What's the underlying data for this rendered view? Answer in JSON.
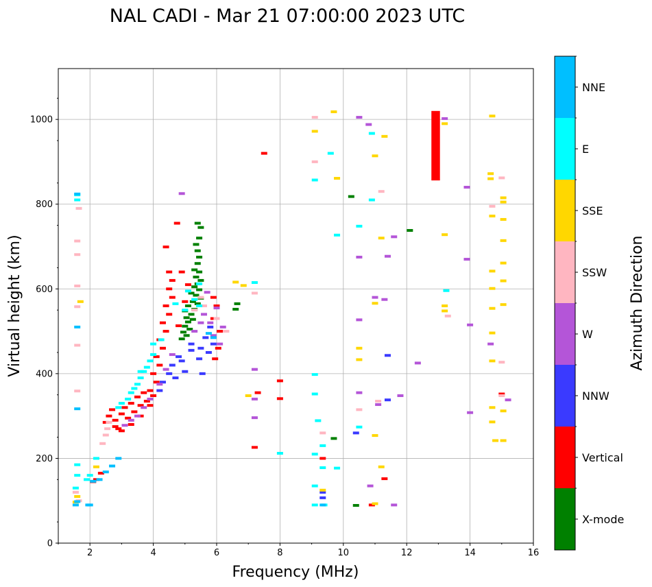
{
  "chart_data": {
    "type": "scatter",
    "title": "NAL CADI - Mar 21 07:00:00 2023 UTC",
    "xlabel": "Frequency (MHz)",
    "ylabel": "Virtual height (km)",
    "xlim": [
      1,
      16
    ],
    "ylim": [
      0,
      1120
    ],
    "xticks": [
      2,
      4,
      6,
      8,
      10,
      12,
      14,
      16
    ],
    "yticks": [
      0,
      200,
      400,
      600,
      800,
      1000
    ],
    "grid": true,
    "colorbar": {
      "title": "Azimuth Direction",
      "categories": [
        {
          "name": "X-mode",
          "color": "#008000"
        },
        {
          "name": "Vertical",
          "color": "#ff0000"
        },
        {
          "name": "NNW",
          "color": "#3a3aff"
        },
        {
          "name": "W",
          "color": "#b455d8"
        },
        {
          "name": "SSW",
          "color": "#ffb6c1"
        },
        {
          "name": "SSE",
          "color": "#ffd700"
        },
        {
          "name": "E",
          "color": "#00ffff"
        },
        {
          "name": "NNE",
          "color": "#00bfff"
        }
      ]
    },
    "series": [
      {
        "name": "X-mode",
        "points": [
          [
            5.4,
            755
          ],
          [
            5.5,
            745
          ],
          [
            5.45,
            720
          ],
          [
            5.35,
            705
          ],
          [
            5.4,
            690
          ],
          [
            5.45,
            675
          ],
          [
            5.4,
            660
          ],
          [
            5.3,
            645
          ],
          [
            5.45,
            640
          ],
          [
            5.35,
            628
          ],
          [
            5.5,
            620
          ],
          [
            5.4,
            612
          ],
          [
            5.3,
            605
          ],
          [
            5.45,
            598
          ],
          [
            5.2,
            590
          ],
          [
            5.35,
            585
          ],
          [
            5.5,
            578
          ],
          [
            5.25,
            570
          ],
          [
            5.4,
            565
          ],
          [
            5.1,
            560
          ],
          [
            5.3,
            552
          ],
          [
            5.0,
            548
          ],
          [
            5.2,
            540
          ],
          [
            5.05,
            532
          ],
          [
            5.25,
            528
          ],
          [
            5.1,
            522
          ],
          [
            5.0,
            512
          ],
          [
            5.15,
            505
          ],
          [
            4.95,
            498
          ],
          [
            5.05,
            490
          ],
          [
            4.9,
            482
          ],
          [
            6.65,
            565
          ],
          [
            6.6,
            552
          ],
          [
            10.25,
            818
          ],
          [
            12.1,
            738
          ],
          [
            9.7,
            247
          ],
          [
            10.4,
            89
          ]
        ]
      },
      {
        "name": "Vertical",
        "points": [
          [
            2.5,
            285
          ],
          [
            2.6,
            300
          ],
          [
            2.7,
            315
          ],
          [
            2.8,
            290
          ],
          [
            2.9,
            270
          ],
          [
            3.0,
            305
          ],
          [
            3.1,
            320
          ],
          [
            3.2,
            295
          ],
          [
            3.3,
            330
          ],
          [
            3.4,
            310
          ],
          [
            3.5,
            345
          ],
          [
            3.6,
            325
          ],
          [
            3.7,
            355
          ],
          [
            3.8,
            335
          ],
          [
            3.9,
            360
          ],
          [
            4.0,
            348
          ],
          [
            4.1,
            380
          ],
          [
            4.0,
            400
          ],
          [
            4.2,
            420
          ],
          [
            4.1,
            440
          ],
          [
            4.3,
            460
          ],
          [
            4.2,
            480
          ],
          [
            4.4,
            500
          ],
          [
            4.3,
            520
          ],
          [
            4.5,
            540
          ],
          [
            4.4,
            560
          ],
          [
            4.6,
            580
          ],
          [
            4.5,
            600
          ],
          [
            4.6,
            620
          ],
          [
            4.5,
            640
          ],
          [
            4.4,
            699
          ],
          [
            4.75,
            755
          ],
          [
            4.9,
            640
          ],
          [
            5.1,
            610
          ],
          [
            5.0,
            570
          ],
          [
            4.8,
            513
          ],
          [
            5.9,
            580
          ],
          [
            6.0,
            560
          ],
          [
            5.9,
            530
          ],
          [
            6.1,
            500
          ],
          [
            6.05,
            460
          ],
          [
            5.95,
            435
          ],
          [
            7.3,
            355
          ],
          [
            7.5,
            920
          ],
          [
            8.0,
            383
          ],
          [
            8.0,
            341
          ],
          [
            9.35,
            200
          ],
          [
            10.9,
            90
          ],
          [
            11.3,
            152
          ],
          [
            12.9,
            940
          ],
          [
            15.0,
            352
          ],
          [
            2.2,
            150
          ],
          [
            2.1,
            145
          ],
          [
            2.35,
            165
          ],
          [
            7.2,
            226
          ],
          [
            3.0,
            265
          ],
          [
            3.3,
            280
          ],
          [
            3.6,
            300
          ],
          [
            3.9,
            325
          ],
          [
            2.8,
            275
          ]
        ]
      },
      {
        "name": "NNW",
        "points": [
          [
            4.8,
            440
          ],
          [
            4.6,
            420
          ],
          [
            4.5,
            400
          ],
          [
            4.3,
            380
          ],
          [
            4.9,
            430
          ],
          [
            5.2,
            470
          ],
          [
            5.5,
            460
          ],
          [
            5.65,
            485
          ],
          [
            5.8,
            510
          ],
          [
            5.9,
            470
          ],
          [
            5.2,
            455
          ],
          [
            4.7,
            390
          ],
          [
            5.0,
            405
          ],
          [
            5.45,
            435
          ],
          [
            4.2,
            360
          ],
          [
            10.4,
            260
          ],
          [
            11.4,
            443
          ],
          [
            9.35,
            120
          ],
          [
            9.35,
            107
          ],
          [
            11.4,
            338
          ],
          [
            5.55,
            400
          ],
          [
            5.75,
            450
          ]
        ]
      },
      {
        "name": "W",
        "points": [
          [
            4.9,
            825
          ],
          [
            5.7,
            592
          ],
          [
            6.0,
            555
          ],
          [
            6.2,
            510
          ],
          [
            5.6,
            540
          ],
          [
            5.8,
            520
          ],
          [
            5.3,
            500
          ],
          [
            5.5,
            520
          ],
          [
            5.9,
            490
          ],
          [
            6.1,
            470
          ],
          [
            4.6,
            445
          ],
          [
            4.4,
            410
          ],
          [
            4.2,
            375
          ],
          [
            3.9,
            340
          ],
          [
            3.7,
            320
          ],
          [
            3.5,
            300
          ],
          [
            3.3,
            290
          ],
          [
            3.1,
            278
          ],
          [
            7.2,
            340
          ],
          [
            7.2,
            410
          ],
          [
            10.5,
            355
          ],
          [
            10.5,
            527
          ],
          [
            10.5,
            675
          ],
          [
            10.5,
            1005
          ],
          [
            10.8,
            988
          ],
          [
            11.0,
            580
          ],
          [
            11.3,
            575
          ],
          [
            11.4,
            677
          ],
          [
            11.6,
            723
          ],
          [
            11.8,
            348
          ],
          [
            12.35,
            425
          ],
          [
            12.9,
            1001
          ],
          [
            13.2,
            1002
          ],
          [
            13.9,
            840
          ],
          [
            13.9,
            670
          ],
          [
            14.0,
            308
          ],
          [
            14.0,
            515
          ],
          [
            14.65,
            470
          ],
          [
            15.2,
            338
          ],
          [
            11.1,
            327
          ],
          [
            10.85,
            135
          ],
          [
            11.6,
            90
          ],
          [
            7.2,
            296
          ]
        ]
      },
      {
        "name": "SSW",
        "points": [
          [
            2.4,
            235
          ],
          [
            2.5,
            255
          ],
          [
            2.55,
            270
          ],
          [
            2.6,
            285
          ],
          [
            1.65,
            790
          ],
          [
            1.6,
            713
          ],
          [
            1.6,
            681
          ],
          [
            1.6,
            607
          ],
          [
            1.6,
            558
          ],
          [
            1.6,
            467
          ],
          [
            1.6,
            359
          ],
          [
            5.5,
            580
          ],
          [
            5.6,
            560
          ],
          [
            5.3,
            550
          ],
          [
            6.0,
            530
          ],
          [
            6.3,
            500
          ],
          [
            7.2,
            590
          ],
          [
            9.1,
            900
          ],
          [
            9.1,
            1005
          ],
          [
            9.35,
            260
          ],
          [
            10.5,
            315
          ],
          [
            11.2,
            830
          ],
          [
            11.1,
            335
          ],
          [
            13.3,
            536
          ],
          [
            14.7,
            795
          ],
          [
            15.0,
            427
          ],
          [
            15.0,
            862
          ],
          [
            15.0,
            348
          ],
          [
            1.55,
            120
          ],
          [
            1.65,
            100
          ]
        ]
      },
      {
        "name": "SSE",
        "points": [
          [
            1.7,
            570
          ],
          [
            6.6,
            616
          ],
          [
            6.85,
            608
          ],
          [
            7.0,
            348
          ],
          [
            9.1,
            972
          ],
          [
            9.35,
            125
          ],
          [
            9.7,
            1018
          ],
          [
            9.8,
            861
          ],
          [
            10.5,
            460
          ],
          [
            10.5,
            433
          ],
          [
            11.0,
            566
          ],
          [
            11.0,
            254
          ],
          [
            11.0,
            914
          ],
          [
            11.2,
            720
          ],
          [
            11.3,
            960
          ],
          [
            11.2,
            180
          ],
          [
            11.0,
            93
          ],
          [
            13.2,
            728
          ],
          [
            13.2,
            560
          ],
          [
            13.2,
            548
          ],
          [
            13.2,
            990
          ],
          [
            14.7,
            1008
          ],
          [
            14.65,
            872
          ],
          [
            14.65,
            860
          ],
          [
            14.7,
            772
          ],
          [
            14.7,
            642
          ],
          [
            14.7,
            601
          ],
          [
            14.7,
            554
          ],
          [
            14.7,
            496
          ],
          [
            14.7,
            430
          ],
          [
            14.7,
            320
          ],
          [
            14.7,
            286
          ],
          [
            14.8,
            242
          ],
          [
            15.05,
            815
          ],
          [
            15.05,
            805
          ],
          [
            15.05,
            764
          ],
          [
            15.05,
            714
          ],
          [
            15.05,
            661
          ],
          [
            15.05,
            619
          ],
          [
            15.05,
            563
          ],
          [
            15.05,
            312
          ],
          [
            15.05,
            242
          ],
          [
            1.55,
            97
          ],
          [
            1.6,
            110
          ],
          [
            2.2,
            180
          ]
        ]
      },
      {
        "name": "E",
        "points": [
          [
            3.9,
            430
          ],
          [
            3.7,
            405
          ],
          [
            3.5,
            375
          ],
          [
            3.3,
            355
          ],
          [
            3.2,
            340
          ],
          [
            3.0,
            330
          ],
          [
            2.9,
            320
          ],
          [
            4.0,
            445
          ],
          [
            3.8,
            415
          ],
          [
            3.6,
            390
          ],
          [
            3.4,
            365
          ],
          [
            4.25,
            480
          ],
          [
            4.7,
            565
          ],
          [
            5.0,
            550
          ],
          [
            5.3,
            575
          ],
          [
            5.45,
            560
          ],
          [
            7.2,
            615
          ],
          [
            1.6,
            822
          ],
          [
            1.6,
            810
          ],
          [
            8.0,
            212
          ],
          [
            9.1,
            398
          ],
          [
            9.1,
            352
          ],
          [
            9.2,
            289
          ],
          [
            9.1,
            210
          ],
          [
            9.1,
            135
          ],
          [
            9.1,
            90
          ],
          [
            9.1,
            857
          ],
          [
            9.35,
            230
          ],
          [
            9.35,
            178
          ],
          [
            9.4,
            90
          ],
          [
            9.6,
            920
          ],
          [
            9.8,
            727
          ],
          [
            9.8,
            177
          ],
          [
            10.5,
            748
          ],
          [
            10.5,
            274
          ],
          [
            10.9,
            967
          ],
          [
            10.9,
            810
          ],
          [
            13.25,
            596
          ],
          [
            2.0,
            160
          ],
          [
            1.9,
            150
          ],
          [
            1.6,
            185
          ],
          [
            1.6,
            160
          ],
          [
            2.2,
            200
          ],
          [
            5.45,
            612
          ],
          [
            5.1,
            595
          ],
          [
            3.6,
            405
          ],
          [
            4.0,
            470
          ],
          [
            1.55,
            130
          ]
        ]
      },
      {
        "name": "NNE",
        "points": [
          [
            1.6,
            824
          ],
          [
            1.6,
            510
          ],
          [
            1.6,
            317
          ],
          [
            1.6,
            98
          ],
          [
            1.55,
            90
          ],
          [
            1.95,
            90
          ],
          [
            2.0,
            90
          ],
          [
            2.1,
            146
          ],
          [
            2.3,
            150
          ],
          [
            2.5,
            168
          ],
          [
            2.7,
            182
          ],
          [
            2.9,
            200
          ],
          [
            9.35,
            90
          ],
          [
            5.9,
            485
          ],
          [
            5.75,
            495
          ]
        ]
      }
    ]
  }
}
